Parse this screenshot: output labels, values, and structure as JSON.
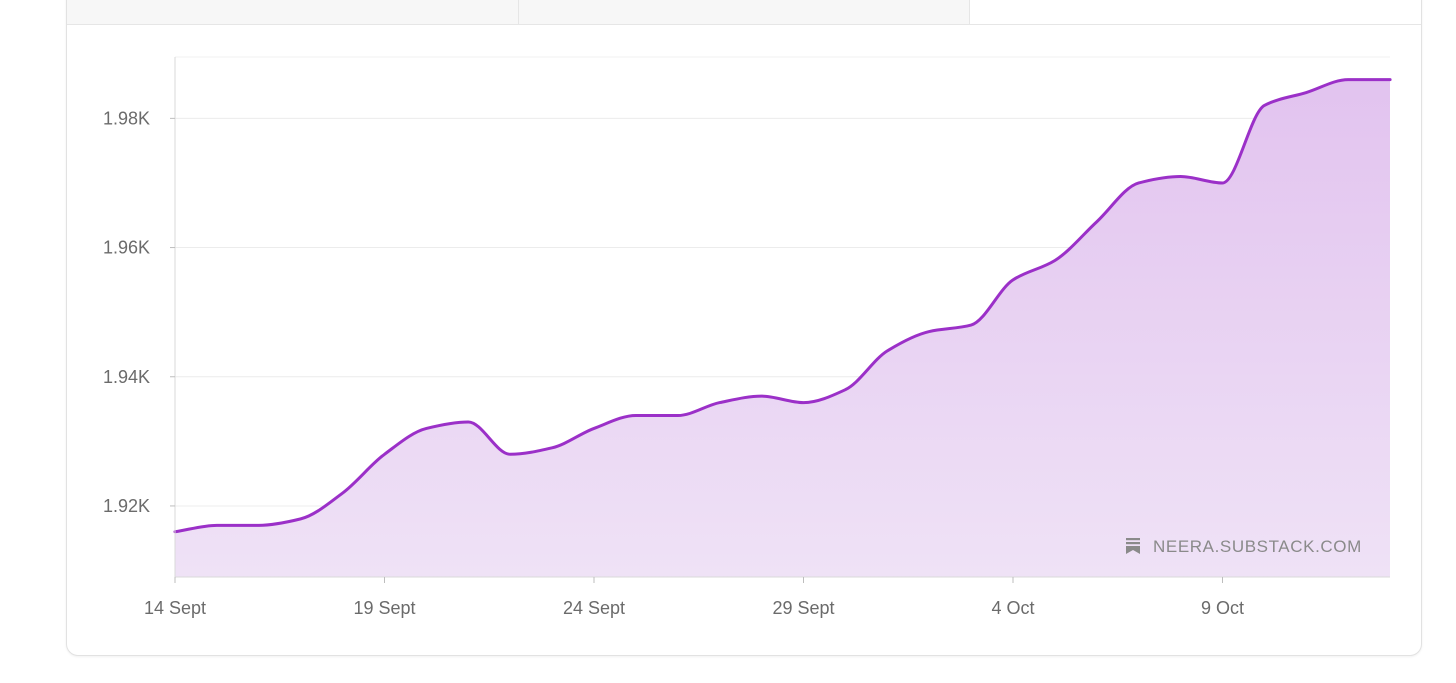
{
  "tabs": [
    {
      "label": ""
    },
    {
      "label": ""
    },
    {
      "label": "",
      "active": true
    }
  ],
  "watermark": {
    "text": "NEERA.SUBSTACK.COM",
    "icon": "substack-bookmark-icon"
  },
  "colors": {
    "line": "#9b30c8",
    "area_top": "#e2c3ef",
    "area_bottom": "#efe2f6",
    "grid": "#ececec",
    "axis": "#d9d9d9"
  },
  "chart_data": {
    "type": "area",
    "title": "",
    "xlabel": "",
    "ylabel": "",
    "x": [
      "2023-09-14",
      "2023-09-15",
      "2023-09-16",
      "2023-09-17",
      "2023-09-18",
      "2023-09-19",
      "2023-09-20",
      "2023-09-21",
      "2023-09-22",
      "2023-09-23",
      "2023-09-24",
      "2023-09-25",
      "2023-09-26",
      "2023-09-27",
      "2023-09-28",
      "2023-09-29",
      "2023-09-30",
      "2023-10-01",
      "2023-10-02",
      "2023-10-03",
      "2023-10-04",
      "2023-10-05",
      "2023-10-06",
      "2023-10-07",
      "2023-10-08",
      "2023-10-09",
      "2023-10-10",
      "2023-10-11",
      "2023-10-12",
      "2023-10-13"
    ],
    "series": [
      {
        "values": [
          1916,
          1917,
          1917,
          1918,
          1922,
          1928,
          1932,
          1933,
          1928,
          1929,
          1932,
          1934,
          1934,
          1936,
          1937,
          1936,
          1938,
          1944,
          1947,
          1948,
          1955,
          1958,
          1964,
          1970,
          1971,
          1970,
          1982,
          1984,
          1986,
          1986
        ]
      }
    ],
    "x_ticks": [
      "14 Sept",
      "19 Sept",
      "24 Sept",
      "29 Sept",
      "4 Oct",
      "9 Oct"
    ],
    "y_ticks": [
      1920,
      1940,
      1960,
      1980
    ],
    "y_tick_labels": [
      "1.92K",
      "1.94K",
      "1.96K",
      "1.98K"
    ],
    "ylim": [
      1909,
      1989.5
    ],
    "grid": true,
    "legend": "none"
  }
}
